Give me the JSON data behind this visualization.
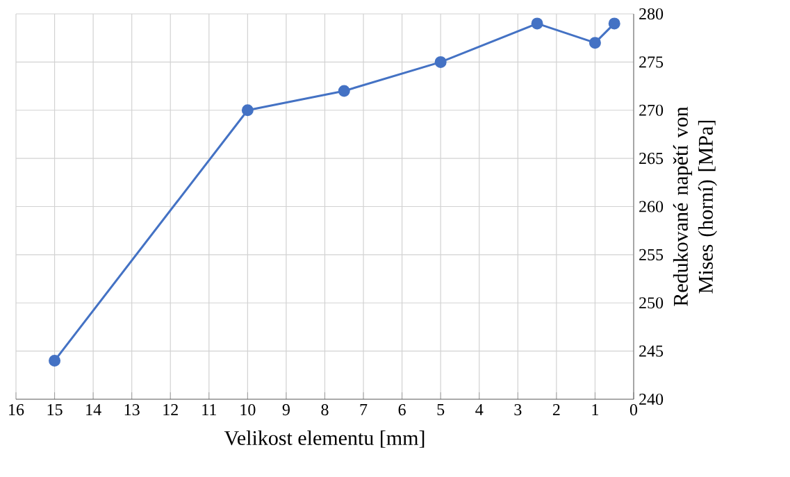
{
  "chart_data": {
    "type": "line",
    "xlabel": "Velikost elementu [mm]",
    "ylabel": "Redukované napětí von Mises (horní)  [MPa]",
    "x": [
      15,
      10,
      7.5,
      5,
      2.5,
      1,
      0.5
    ],
    "series": [
      {
        "color": "#4472c4",
        "values": [
          244,
          270,
          272,
          275,
          279,
          277,
          279
        ]
      }
    ],
    "xlim": [
      16,
      0
    ],
    "xticks": [
      16,
      15,
      14,
      13,
      12,
      11,
      10,
      9,
      8,
      7,
      6,
      5,
      4,
      3,
      2,
      1,
      0
    ],
    "ylim": [
      240,
      280
    ],
    "yticks": [
      240,
      245,
      250,
      255,
      260,
      265,
      270,
      275,
      280
    ],
    "grid": true,
    "marker": "circle",
    "line_style": "solid"
  }
}
